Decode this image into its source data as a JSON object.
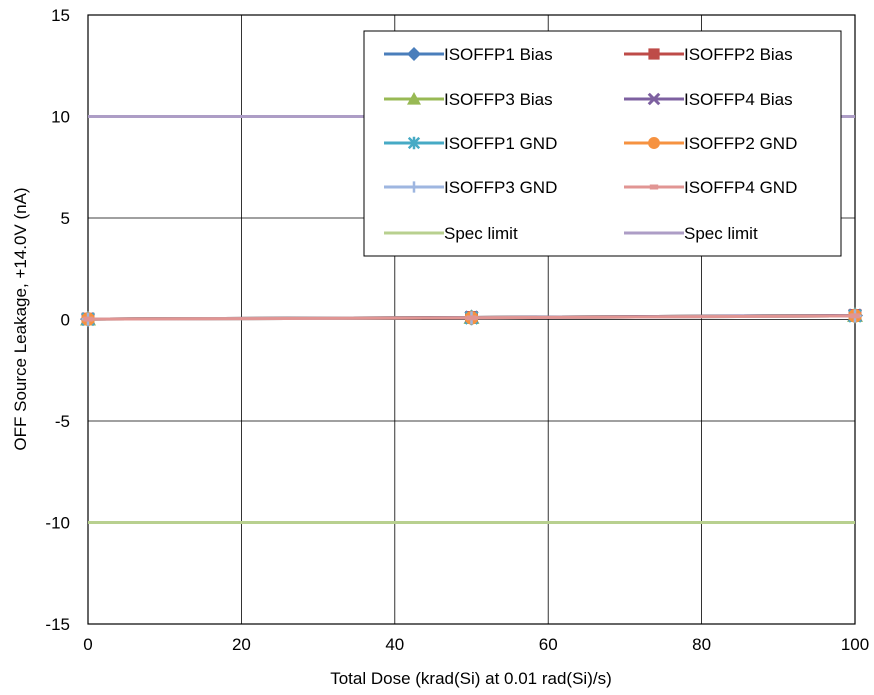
{
  "chart_data": {
    "type": "line",
    "title": "",
    "xlabel": "Total Dose (krad(Si) at 0.01 rad(Si)/s)",
    "ylabel": "OFF Source Leakage, +14.0V (nA)",
    "xlim": [
      0,
      100
    ],
    "ylim": [
      -15,
      15
    ],
    "xticks": [
      0,
      20,
      40,
      60,
      80,
      100
    ],
    "yticks": [
      -15,
      -10,
      -5,
      0,
      5,
      10,
      15
    ],
    "grid": true,
    "legend_position": "top-right",
    "series": [
      {
        "name": "ISOFFP1 Bias",
        "x": [
          0,
          50,
          100
        ],
        "y": [
          0.02,
          0.1,
          0.2
        ],
        "color": "#4a7ebb",
        "marker": "diamond"
      },
      {
        "name": "ISOFFP2 Bias",
        "x": [
          0,
          50,
          100
        ],
        "y": [
          0.02,
          0.1,
          0.2
        ],
        "color": "#be4b48",
        "marker": "square"
      },
      {
        "name": "ISOFFP3 Bias",
        "x": [
          0,
          50,
          100
        ],
        "y": [
          0.02,
          0.1,
          0.2
        ],
        "color": "#98b954",
        "marker": "triangle"
      },
      {
        "name": "ISOFFP4 Bias",
        "x": [
          0,
          50,
          100
        ],
        "y": [
          0.02,
          0.1,
          0.2
        ],
        "color": "#7d60a0",
        "marker": "x"
      },
      {
        "name": "ISOFFP1 GND",
        "x": [
          0,
          50,
          100
        ],
        "y": [
          0.02,
          0.08,
          0.18
        ],
        "color": "#46aac5",
        "marker": "asterisk"
      },
      {
        "name": "ISOFFP2 GND",
        "x": [
          0,
          50,
          100
        ],
        "y": [
          0.02,
          0.08,
          0.18
        ],
        "color": "#f69240",
        "marker": "circle"
      },
      {
        "name": "ISOFFP3 GND",
        "x": [
          0,
          50,
          100
        ],
        "y": [
          0.02,
          0.08,
          0.18
        ],
        "color": "#9eb6e0",
        "marker": "plus"
      },
      {
        "name": "ISOFFP4 GND",
        "x": [
          0,
          50,
          100
        ],
        "y": [
          0.02,
          0.08,
          0.18
        ],
        "color": "#e19593",
        "marker": "dash"
      },
      {
        "name": "Spec limit",
        "x": [
          0,
          100
        ],
        "y": [
          -10,
          -10
        ],
        "color": "#b8d08f",
        "marker": "none"
      },
      {
        "name": "Spec limit",
        "x": [
          0,
          100
        ],
        "y": [
          10,
          10
        ],
        "color": "#ad9dc6",
        "marker": "none"
      }
    ]
  }
}
